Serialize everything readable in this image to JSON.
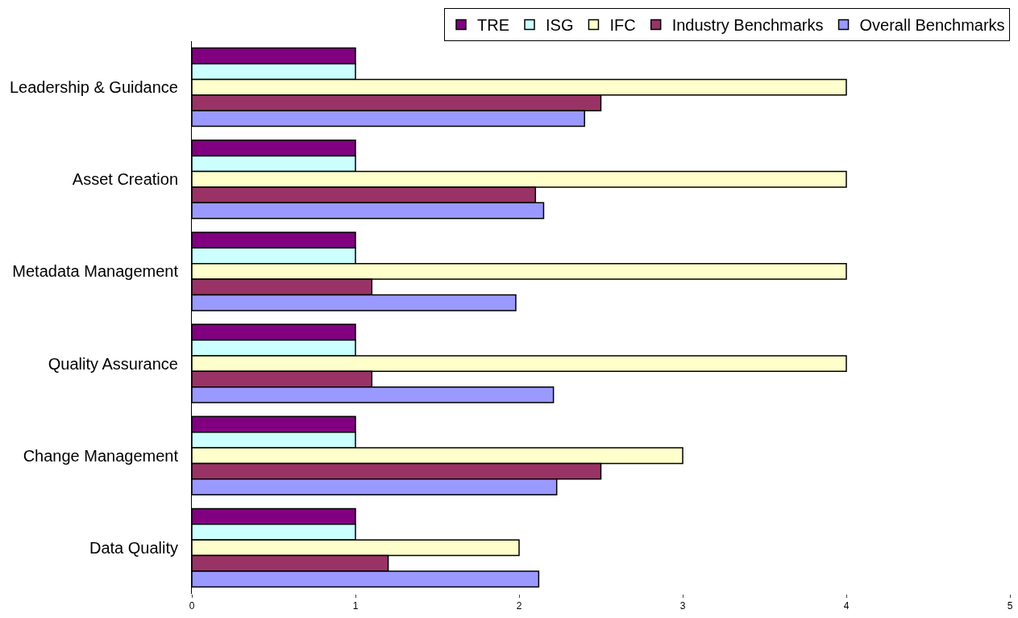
{
  "chart_data": {
    "type": "bar",
    "orientation": "horizontal",
    "categories": [
      "Leadership & Guidance",
      "Asset Creation",
      "Metadata Management",
      "Quality Assurance",
      "Change Management",
      "Data Quality"
    ],
    "series": [
      {
        "name": "TRE",
        "color": "#800080",
        "values": [
          1,
          1,
          1,
          1,
          1,
          1
        ]
      },
      {
        "name": "ISG",
        "color": "#ccffff",
        "values": [
          1,
          1,
          1,
          1,
          1,
          1
        ]
      },
      {
        "name": "IFC",
        "color": "#ffffcc",
        "values": [
          4,
          4,
          4,
          4,
          3,
          2
        ]
      },
      {
        "name": "Industry Benchmarks",
        "color": "#993366",
        "values": [
          2.5,
          2.1,
          1.1,
          1.1,
          2.5,
          1.2
        ]
      },
      {
        "name": "Overall Benchmarks",
        "color": "#9999ff",
        "values": [
          2.4,
          2.15,
          1.98,
          2.21,
          2.23,
          2.12
        ]
      }
    ],
    "xlim": [
      0,
      5
    ],
    "xticks": [
      0,
      1,
      2,
      3,
      4,
      5
    ],
    "grid": false,
    "legend": "top right"
  }
}
